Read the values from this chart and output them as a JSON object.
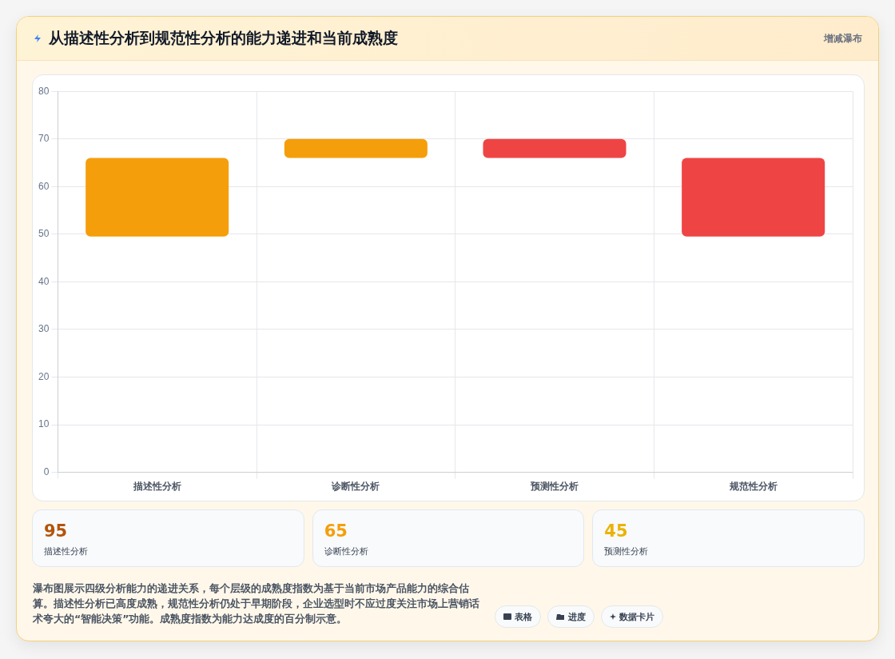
{
  "chart_data": [
    {
      "type": "bar",
      "title": "从描述性分析到规范性分析的能力递进和当前成熟度",
      "subtitle": "增减瀑布",
      "categories": [
        "描述性分析",
        "诊断性分析",
        "预测性分析",
        "规范性分析"
      ],
      "base": [
        49.5,
        66,
        70,
        66
      ],
      "values": [
        16.5,
        4,
        -4,
        -16.5
      ],
      "colors": [
        "#f59e0b",
        "#f59e0b",
        "#ef4444",
        "#ef4444"
      ],
      "ylim": [
        0,
        80
      ],
      "yticks": [
        0,
        10,
        20,
        30,
        40,
        50,
        60,
        70,
        80
      ],
      "grid": true,
      "annotations": [
        "瀑布图展示四级分析能力的递进关系，每个层级的成熟度指数为基于当前市场产品能力的综合估算。描述性分析已高度成熟，规范性分析仍处于早期阶段，企业选型时不应过度关注市场上营销话术夸大的“智能决策”功能。成熟度指数为能力达成度的百分制示意。",
        "表格",
        "进度",
        "数据卡片"
      ]
    },
    {
      "type": "other",
      "annotations": [
        "95",
        "描述性分析",
        "65",
        "诊断性分析",
        "45",
        "预测性分析"
      ]
    }
  ]
}
